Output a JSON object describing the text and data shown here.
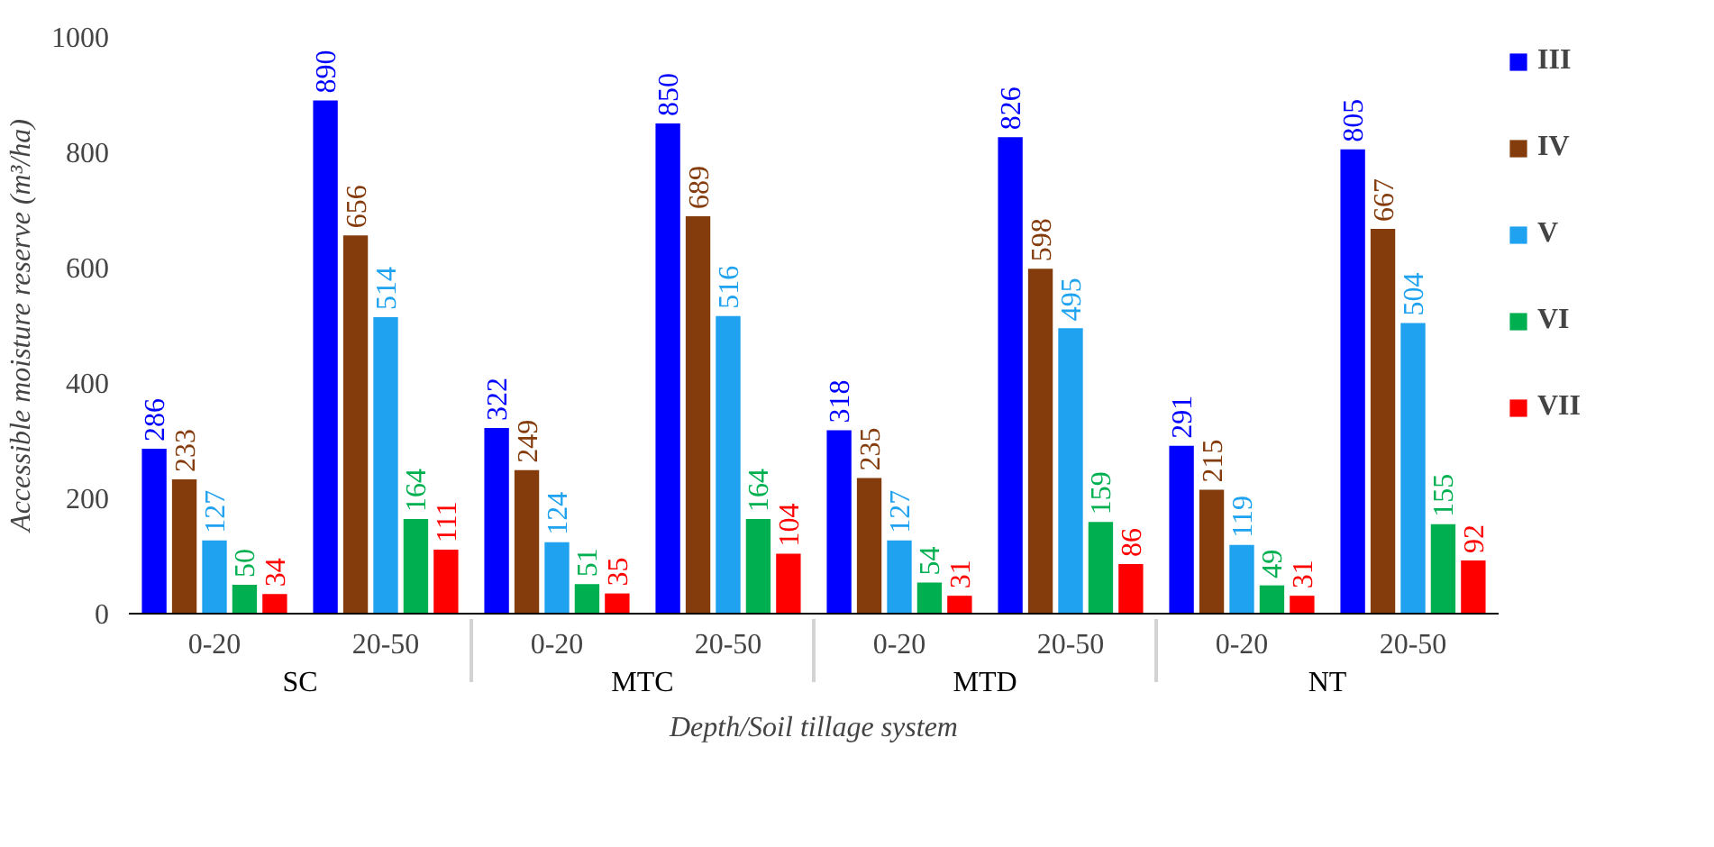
{
  "chart_data": {
    "type": "bar",
    "xlabel": "Depth/Soil tillage system",
    "ylabel": "Accessible moisture reserve (m³/ha)",
    "categories": [
      "0-20",
      "20-50",
      "0-20",
      "20-50",
      "0-20",
      "20-50",
      "0-20",
      "20-50"
    ],
    "annotations": [
      "SC",
      "MTC",
      "MTD",
      "NT"
    ],
    "ylim": [
      0,
      1000
    ],
    "yticks": [
      0,
      200,
      400,
      600,
      800,
      1000
    ],
    "grid": false,
    "legend": "right",
    "data_labels": true,
    "series": [
      {
        "name": "III",
        "color": "#0000ff",
        "values": [
          286,
          890,
          322,
          850,
          318,
          826,
          291,
          805
        ]
      },
      {
        "name": "IV",
        "color": "#843c0c",
        "values": [
          233,
          656,
          249,
          689,
          235,
          598,
          215,
          667
        ]
      },
      {
        "name": "V",
        "color": "#1fa2f0",
        "values": [
          127,
          514,
          124,
          516,
          127,
          495,
          119,
          504
        ]
      },
      {
        "name": "VI",
        "color": "#00b050",
        "values": [
          50,
          164,
          51,
          164,
          54,
          159,
          49,
          155
        ]
      },
      {
        "name": "VII",
        "color": "#ff0000",
        "values": [
          34,
          111,
          35,
          104,
          31,
          86,
          31,
          92
        ]
      }
    ]
  }
}
